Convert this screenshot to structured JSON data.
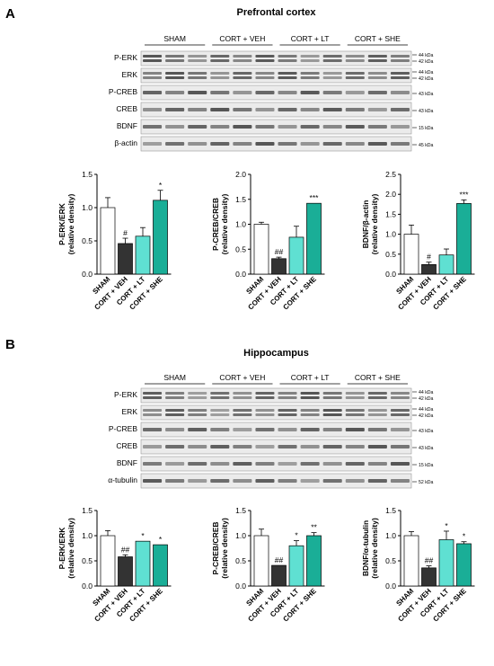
{
  "colors": {
    "sham": "#ffffff",
    "veh": "#333333",
    "lt": "#5fe0d2",
    "she": "#1aae97",
    "edge": "#000000"
  },
  "panels": [
    {
      "letter": "A",
      "title": "Prefrontal cortex",
      "groups": [
        "SHAM",
        "CORT + VEH",
        "CORT + LT",
        "CORT + SHE"
      ],
      "blots": [
        {
          "label": "P-ERK",
          "kda": [
            "44 kDa",
            "42 kDa"
          ]
        },
        {
          "label": "ERK",
          "kda": [
            "44 kDa",
            "42 kDa"
          ]
        },
        {
          "label": "P-CREB",
          "kda": [
            "43 kDa"
          ]
        },
        {
          "label": "CREB",
          "kda": [
            "43 kDa"
          ]
        },
        {
          "label": "BDNF",
          "kda": [
            "15 kDa"
          ]
        },
        {
          "label": "β-actin",
          "kda": [
            "45 kDa"
          ]
        }
      ]
    },
    {
      "letter": "B",
      "title": "Hippocampus",
      "groups": [
        "SHAM",
        "CORT + VEH",
        "CORT + LT",
        "CORT + SHE"
      ],
      "blots": [
        {
          "label": "P-ERK",
          "kda": [
            "44 kDa",
            "42 kDa"
          ]
        },
        {
          "label": "ERK",
          "kda": [
            "44 kDa",
            "42 kDa"
          ]
        },
        {
          "label": "P-CREB",
          "kda": [
            "43 kDa"
          ]
        },
        {
          "label": "CREB",
          "kda": [
            "43 kDa"
          ]
        },
        {
          "label": "BDNF",
          "kda": [
            "15 kDa"
          ]
        },
        {
          "label": "α-tubulin",
          "kda": [
            "52 kDa"
          ]
        }
      ]
    }
  ],
  "chart_data": [
    {
      "type": "bar",
      "panel": "A",
      "ylabel": [
        "P-ERK/ERK",
        "(relative density)"
      ],
      "categories": [
        "SHAM",
        "CORT + VEH",
        "CORT + LT",
        "CORT + SHE"
      ],
      "values": [
        1.0,
        0.46,
        0.57,
        1.11
      ],
      "errors": [
        0.15,
        0.08,
        0.13,
        0.15
      ],
      "annotations": [
        "",
        "#",
        "",
        "*"
      ],
      "ylim": [
        0,
        1.5
      ],
      "yticks": [
        "0.0",
        "0.5",
        "1.0",
        "1.5"
      ]
    },
    {
      "type": "bar",
      "panel": "A",
      "ylabel": [
        "P-CREB/CREB",
        "(relative density)"
      ],
      "categories": [
        "SHAM",
        "CORT + VEH",
        "CORT + LT",
        "CORT + SHE"
      ],
      "values": [
        1.0,
        0.31,
        0.74,
        1.42
      ],
      "errors": [
        0.04,
        0.03,
        0.22,
        0.0
      ],
      "annotations": [
        "",
        "##",
        "",
        "***"
      ],
      "ylim": [
        0,
        2.0
      ],
      "yticks": [
        "0.0",
        "0.5",
        "1.0",
        "1.5",
        "2.0"
      ]
    },
    {
      "type": "bar",
      "panel": "A",
      "ylabel": [
        "BDNF/β-actin",
        "(relative density)"
      ],
      "categories": [
        "SHAM",
        "CORT + VEH",
        "CORT + LT",
        "CORT + SHE"
      ],
      "values": [
        1.0,
        0.24,
        0.48,
        1.77
      ],
      "errors": [
        0.23,
        0.06,
        0.15,
        0.09
      ],
      "annotations": [
        "",
        "#",
        "",
        "***"
      ],
      "ylim": [
        0,
        2.5
      ],
      "yticks": [
        "0.0",
        "0.5",
        "1.0",
        "1.5",
        "2.0",
        "2.5"
      ]
    },
    {
      "type": "bar",
      "panel": "B",
      "ylabel": [
        "P-ERK/ERK",
        "(relative density)"
      ],
      "categories": [
        "SHAM",
        "CORT + VEH",
        "CORT + LT",
        "CORT + SHE"
      ],
      "values": [
        1.0,
        0.58,
        0.89,
        0.82
      ],
      "errors": [
        0.1,
        0.04,
        0.0,
        0.0
      ],
      "annotations": [
        "",
        "##",
        "*",
        "*"
      ],
      "ylim": [
        0,
        1.5
      ],
      "yticks": [
        "0.0",
        "0.5",
        "1.0",
        "1.5"
      ]
    },
    {
      "type": "bar",
      "panel": "B",
      "ylabel": [
        "P-CREB/CREB",
        "(relative density)"
      ],
      "categories": [
        "SHAM",
        "CORT + VEH",
        "CORT + LT",
        "CORT + SHE"
      ],
      "values": [
        1.0,
        0.41,
        0.8,
        1.0
      ],
      "errors": [
        0.13,
        0.0,
        0.1,
        0.06
      ],
      "annotations": [
        "",
        "##",
        "*",
        "**"
      ],
      "ylim": [
        0,
        1.5
      ],
      "yticks": [
        "0.0",
        "0.5",
        "1.0",
        "1.5"
      ]
    },
    {
      "type": "bar",
      "panel": "B",
      "ylabel": [
        "BDNF/α-tubulin",
        "(relative density)"
      ],
      "categories": [
        "SHAM",
        "CORT + VEH",
        "CORT + LT",
        "CORT + SHE"
      ],
      "values": [
        1.0,
        0.36,
        0.92,
        0.84
      ],
      "errors": [
        0.08,
        0.04,
        0.17,
        0.04
      ],
      "annotations": [
        "",
        "##",
        "*",
        "*"
      ],
      "ylim": [
        0,
        1.5
      ],
      "yticks": [
        "0.0",
        "0.5",
        "1.0",
        "1.5"
      ]
    }
  ]
}
